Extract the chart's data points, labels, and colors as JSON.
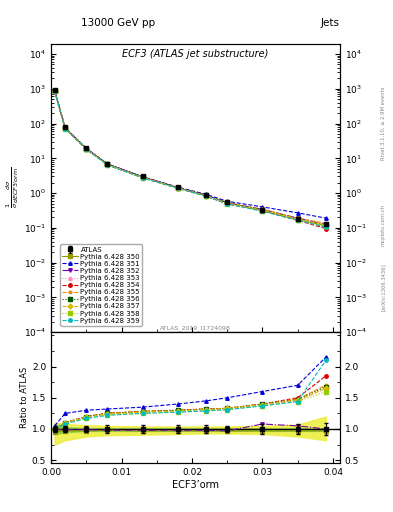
{
  "title_top": "13000 GeV pp",
  "title_right": "Jets",
  "plot_title": "ECF3 (ATLAS jet substructure)",
  "xlabel": "ECF3’orm",
  "ylabel_ratio": "Ratio to ATLAS",
  "reference_id": "ATLAS_2019_I1724098",
  "rivet_label": "Rivet 3.1.10, ≥ 2.9M events",
  "arxiv_label": "[arXiv:1306.3436]",
  "mcplots_label": "mcplots.cern.ch",
  "x_data": [
    0.0005,
    0.002,
    0.005,
    0.008,
    0.013,
    0.018,
    0.022,
    0.025,
    0.03,
    0.035,
    0.039
  ],
  "atlas_y": [
    950,
    78,
    20,
    7.0,
    3.0,
    1.45,
    0.88,
    0.55,
    0.32,
    0.18,
    0.13
  ],
  "atlas_yerr": [
    40,
    4,
    1,
    0.4,
    0.18,
    0.09,
    0.05,
    0.03,
    0.025,
    0.015,
    0.012
  ],
  "pythia_350_y": [
    880,
    74,
    19,
    6.8,
    2.88,
    1.4,
    0.85,
    0.53,
    0.31,
    0.17,
    0.115
  ],
  "pythia_351_y": [
    900,
    76,
    19.3,
    6.9,
    2.95,
    1.48,
    0.92,
    0.58,
    0.4,
    0.27,
    0.19
  ],
  "pythia_352_y": [
    940,
    76,
    19.1,
    6.85,
    2.92,
    1.45,
    0.87,
    0.53,
    0.34,
    0.19,
    0.125
  ],
  "pythia_353_y": [
    870,
    73,
    18.7,
    6.65,
    2.82,
    1.4,
    0.83,
    0.5,
    0.32,
    0.17,
    0.11
  ],
  "pythia_354_y": [
    860,
    72,
    18.4,
    6.55,
    2.78,
    1.38,
    0.82,
    0.49,
    0.31,
    0.165,
    0.095
  ],
  "pythia_355_y": [
    875,
    73,
    18.6,
    6.65,
    2.82,
    1.41,
    0.85,
    0.52,
    0.34,
    0.19,
    0.135
  ],
  "pythia_356_y": [
    885,
    74,
    18.9,
    6.75,
    2.87,
    1.43,
    0.86,
    0.52,
    0.33,
    0.185,
    0.12
  ],
  "pythia_357_y": [
    870,
    72,
    18.5,
    6.58,
    2.8,
    1.4,
    0.84,
    0.51,
    0.32,
    0.18,
    0.12
  ],
  "pythia_358_y": [
    860,
    71,
    18.3,
    6.45,
    2.76,
    1.38,
    0.82,
    0.5,
    0.31,
    0.172,
    0.11
  ],
  "pythia_359_y": [
    850,
    70,
    18.1,
    6.35,
    2.73,
    1.36,
    0.81,
    0.49,
    0.3,
    0.165,
    0.105
  ],
  "ratio_350_y": [
    0.95,
    0.97,
    0.97,
    0.98,
    0.97,
    0.97,
    0.97,
    0.97,
    0.97,
    0.97,
    0.97
  ],
  "ratio_351_y": [
    1.05,
    1.25,
    1.3,
    1.32,
    1.35,
    1.4,
    1.45,
    1.5,
    1.6,
    1.7,
    2.15
  ],
  "ratio_352_y": [
    1.0,
    0.99,
    0.99,
    0.98,
    0.98,
    0.98,
    0.98,
    0.97,
    1.08,
    1.05,
    1.0
  ],
  "ratio_353_y": [
    1.0,
    1.1,
    1.2,
    1.25,
    1.28,
    1.3,
    1.32,
    1.33,
    1.4,
    1.45,
    1.65
  ],
  "ratio_354_y": [
    1.0,
    1.1,
    1.2,
    1.25,
    1.28,
    1.3,
    1.32,
    1.33,
    1.4,
    1.5,
    1.85
  ],
  "ratio_355_y": [
    1.0,
    1.1,
    1.2,
    1.25,
    1.28,
    1.3,
    1.32,
    1.33,
    1.4,
    1.48,
    1.7
  ],
  "ratio_356_y": [
    1.0,
    1.1,
    1.2,
    1.25,
    1.28,
    1.3,
    1.32,
    1.33,
    1.4,
    1.47,
    1.68
  ],
  "ratio_357_y": [
    1.0,
    1.1,
    1.19,
    1.24,
    1.27,
    1.29,
    1.31,
    1.33,
    1.39,
    1.46,
    1.65
  ],
  "ratio_358_y": [
    1.0,
    1.08,
    1.17,
    1.22,
    1.25,
    1.27,
    1.29,
    1.31,
    1.37,
    1.44,
    1.6
  ],
  "ratio_359_y": [
    1.0,
    1.08,
    1.17,
    1.22,
    1.25,
    1.27,
    1.29,
    1.31,
    1.37,
    1.44,
    2.1
  ],
  "band_yellow_lo": [
    0.75,
    0.82,
    0.88,
    0.9,
    0.91,
    0.92,
    0.93,
    0.93,
    0.92,
    0.88,
    0.82
  ],
  "band_yellow_hi": [
    1.1,
    1.08,
    1.06,
    1.05,
    1.04,
    1.04,
    1.04,
    1.04,
    1.05,
    1.07,
    1.2
  ],
  "band_green_lo": [
    0.92,
    0.95,
    0.97,
    0.97,
    0.97,
    0.97,
    0.97,
    0.97,
    0.97,
    0.97,
    0.97
  ],
  "band_green_hi": [
    1.08,
    1.03,
    1.01,
    1.01,
    1.01,
    1.01,
    1.01,
    1.01,
    1.01,
    1.01,
    1.01
  ],
  "colors": {
    "atlas": "#000000",
    "p350": "#999900",
    "p351": "#0000dd",
    "p352": "#7700aa",
    "p353": "#ff88bb",
    "p354": "#dd0000",
    "p355": "#ff8800",
    "p356": "#005500",
    "p357": "#ddbb00",
    "p358": "#99cc00",
    "p359": "#00bbbb"
  },
  "xlim": [
    0.0,
    0.041
  ],
  "ylim_main": [
    0.0001,
    20000.0
  ],
  "ylim_ratio": [
    0.45,
    2.55
  ],
  "ratio_yticks": [
    0.5,
    1.0,
    1.5,
    2.0
  ],
  "background_color": "#ffffff",
  "band_color_yellow": "#eeee44",
  "band_color_green": "#88cc44"
}
